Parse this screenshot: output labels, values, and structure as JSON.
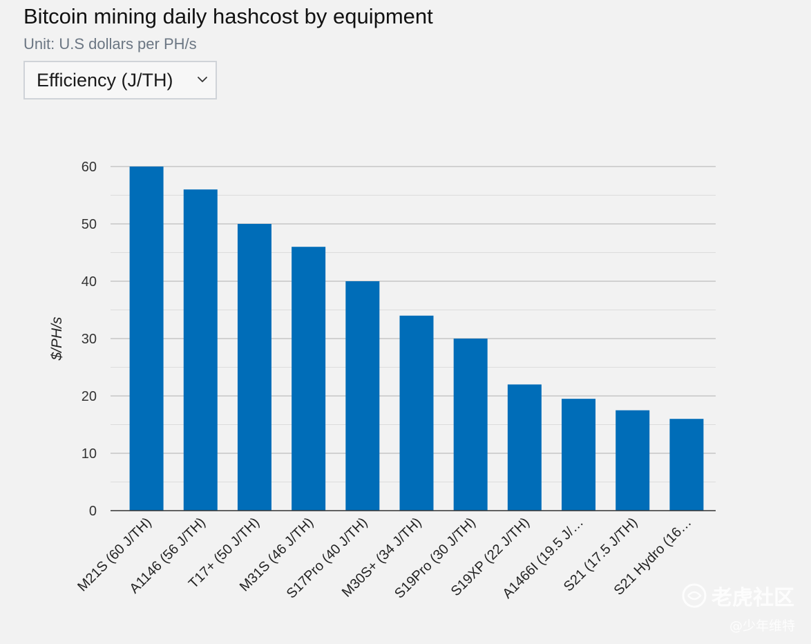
{
  "header": {
    "title": "Bitcoin mining daily hashcost by equipment",
    "subtitle": "Unit: U.S dollars per PH/s"
  },
  "dropdown": {
    "selected": "Efficiency (J/TH)",
    "icon": "chevron-down-icon"
  },
  "chart_data": {
    "type": "bar",
    "title": "Bitcoin mining daily hashcost by equipment",
    "subtitle": "Unit: U.S dollars per PH/s",
    "xlabel": "",
    "ylabel": "$/PH/s",
    "ylim": [
      0,
      60
    ],
    "yticks": [
      0,
      10,
      20,
      30,
      40,
      50,
      60
    ],
    "grid": true,
    "bar_color": "#006db8",
    "categories": [
      "M21S (60 J/TH)",
      "A1146 (56 J/TH)",
      "T17+ (50 J/TH)",
      "M31S (46 J/TH)",
      "S17Pro (40 J/TH)",
      "M30S+ (34 J/TH)",
      "S19Pro (30 J/TH)",
      "S19XP (22 J/TH)",
      "A1466I (19.5 J/…",
      "S21 (17.5 J/TH)",
      "S21 Hydro (16…"
    ],
    "values": [
      60,
      56,
      50,
      46,
      40,
      34,
      30,
      22,
      19.5,
      17.5,
      16
    ]
  },
  "watermark": {
    "brand": "老虎社区",
    "author": "@少年维特"
  }
}
